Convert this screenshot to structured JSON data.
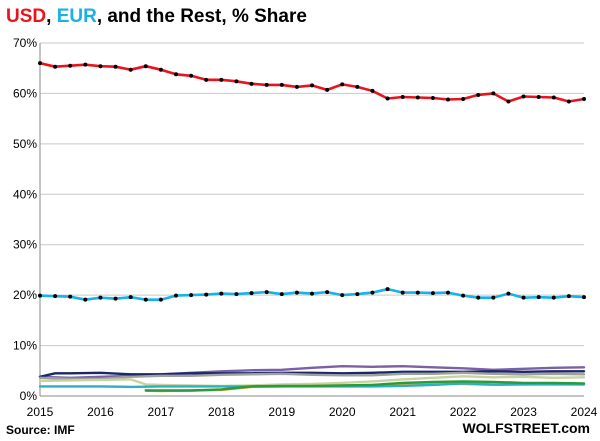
{
  "title": {
    "usd": "USD",
    "sep1": ", ",
    "eur": "EUR",
    "rest": ", and the Rest, % Share",
    "usd_color": "#e8141c",
    "eur_color": "#1ab0e8",
    "rest_color": "#000000"
  },
  "source": "Source: IMF",
  "brand": "WOLFSTREET.com",
  "chart_data": {
    "type": "line",
    "title": "USD, EUR, and the Rest, % Share",
    "xlim": [
      2015,
      2024
    ],
    "ylim": [
      0,
      70
    ],
    "x_ticks": [
      "2015",
      "2016",
      "2017",
      "2018",
      "2019",
      "2020",
      "2021",
      "2022",
      "2023",
      "2024"
    ],
    "y_ticks": [
      "0%",
      "10%",
      "20%",
      "30%",
      "40%",
      "50%",
      "60%",
      "70%"
    ],
    "grid": true,
    "legend": "none",
    "series": [
      {
        "color": "#e8141c",
        "markers": true,
        "x": [
          2015.0,
          2015.25,
          2015.5,
          2015.75,
          2016.0,
          2016.25,
          2016.5,
          2016.75,
          2017.0,
          2017.25,
          2017.5,
          2017.75,
          2018.0,
          2018.25,
          2018.5,
          2018.75,
          2019.0,
          2019.25,
          2019.5,
          2019.75,
          2020.0,
          2020.25,
          2020.5,
          2020.75,
          2021.0,
          2021.25,
          2021.5,
          2021.75,
          2022.0,
          2022.25,
          2022.5,
          2022.75,
          2023.0,
          2023.25,
          2023.5,
          2023.75,
          2024.0
        ],
        "y": [
          66.0,
          65.3,
          65.5,
          65.7,
          65.4,
          65.3,
          64.7,
          65.4,
          64.7,
          63.8,
          63.5,
          62.7,
          62.7,
          62.4,
          61.9,
          61.7,
          61.7,
          61.3,
          61.6,
          60.7,
          61.8,
          61.3,
          60.5,
          59.0,
          59.3,
          59.2,
          59.1,
          58.8,
          58.9,
          59.7,
          60.0,
          58.4,
          59.4,
          59.3,
          59.2,
          58.4,
          58.9
        ]
      },
      {
        "color": "#1ab0e8",
        "markers": true,
        "x": [
          2015.0,
          2015.25,
          2015.5,
          2015.75,
          2016.0,
          2016.25,
          2016.5,
          2016.75,
          2017.0,
          2017.25,
          2017.5,
          2017.75,
          2018.0,
          2018.25,
          2018.5,
          2018.75,
          2019.0,
          2019.25,
          2019.5,
          2019.75,
          2020.0,
          2020.25,
          2020.5,
          2020.75,
          2021.0,
          2021.25,
          2021.5,
          2021.75,
          2022.0,
          2022.25,
          2022.5,
          2022.75,
          2023.0,
          2023.25,
          2023.5,
          2023.75,
          2024.0
        ],
        "y": [
          19.9,
          19.8,
          19.7,
          19.1,
          19.5,
          19.3,
          19.6,
          19.1,
          19.1,
          19.9,
          20.0,
          20.1,
          20.3,
          20.2,
          20.4,
          20.6,
          20.2,
          20.5,
          20.3,
          20.6,
          20.0,
          20.2,
          20.5,
          21.2,
          20.5,
          20.5,
          20.4,
          20.5,
          19.9,
          19.5,
          19.5,
          20.3,
          19.5,
          19.6,
          19.5,
          19.8,
          19.6
        ]
      },
      {
        "color": "#7b5fa8",
        "x": [
          2015.0,
          2015.5,
          2016.0,
          2016.5,
          2017.0,
          2017.5,
          2018.0,
          2018.5,
          2019.0,
          2019.5,
          2020.0,
          2020.5,
          2021.0,
          2021.5,
          2022.0,
          2022.5,
          2023.0,
          2023.5,
          2024.0
        ],
        "y": [
          3.8,
          3.6,
          3.8,
          4.0,
          4.3,
          4.6,
          4.9,
          5.1,
          5.2,
          5.6,
          5.9,
          5.8,
          5.9,
          5.7,
          5.5,
          5.2,
          5.4,
          5.6,
          5.7
        ]
      },
      {
        "color": "#1a2866",
        "x": [
          2015.0,
          2015.25,
          2015.5,
          2016.0,
          2016.5,
          2017.0,
          2017.5,
          2018.0,
          2018.5,
          2019.0,
          2019.5,
          2020.0,
          2020.5,
          2021.0,
          2021.5,
          2022.0,
          2022.5,
          2023.0,
          2023.5,
          2024.0
        ],
        "y": [
          3.8,
          4.5,
          4.5,
          4.6,
          4.3,
          4.3,
          4.5,
          4.5,
          4.5,
          4.6,
          4.6,
          4.5,
          4.6,
          4.8,
          4.8,
          4.8,
          4.9,
          4.8,
          4.9,
          4.9
        ]
      },
      {
        "color": "#a0a0a0",
        "x": [
          2015.0,
          2015.5,
          2016.0,
          2016.5,
          2017.0,
          2017.5,
          2018.0,
          2018.5,
          2019.0,
          2019.5,
          2020.0,
          2020.5,
          2021.0,
          2021.5,
          2022.0,
          2022.5,
          2023.0,
          2023.5,
          2024.0
        ],
        "y": [
          3.6,
          3.4,
          3.4,
          3.8,
          4.0,
          4.0,
          4.2,
          4.3,
          4.4,
          4.2,
          4.1,
          4.1,
          4.4,
          4.4,
          4.6,
          4.4,
          4.3,
          4.4,
          4.3
        ]
      },
      {
        "color": "#c8d4a0",
        "x": [
          2015.0,
          2015.5,
          2016.0,
          2016.5,
          2016.75,
          2017.0,
          2017.5,
          2018.0,
          2018.5,
          2019.0,
          2019.5,
          2020.0,
          2020.5,
          2021.0,
          2021.5,
          2022.0,
          2022.5,
          2023.0,
          2023.5,
          2024.0
        ],
        "y": [
          3.0,
          3.1,
          3.2,
          3.3,
          2.3,
          2.2,
          2.1,
          2.0,
          2.1,
          2.3,
          2.4,
          2.6,
          2.9,
          3.3,
          3.6,
          3.9,
          3.7,
          3.8,
          3.6,
          3.7
        ]
      },
      {
        "color": "#f2a030",
        "x": [
          2016.75,
          2017.0,
          2017.5,
          2018.0,
          2018.5,
          2019.0,
          2019.5,
          2020.0,
          2020.5,
          2021.0,
          2021.5,
          2022.0,
          2022.5,
          2023.0,
          2023.5,
          2024.0
        ],
        "y": [
          1.1,
          1.0,
          1.1,
          1.2,
          1.8,
          1.9,
          2.0,
          2.1,
          2.2,
          2.3,
          2.6,
          2.4,
          2.2,
          2.3,
          2.4,
          2.3
        ]
      },
      {
        "color": "#2ab0c0",
        "x": [
          2015.0,
          2015.5,
          2016.0,
          2016.5,
          2017.0,
          2017.5,
          2018.0,
          2018.5,
          2019.0,
          2019.5,
          2020.0,
          2020.5,
          2021.0,
          2021.5,
          2022.0,
          2022.5,
          2023.0,
          2023.5,
          2024.0
        ],
        "y": [
          1.9,
          1.9,
          1.9,
          1.8,
          1.9,
          1.9,
          1.9,
          1.9,
          1.9,
          1.9,
          1.9,
          1.9,
          2.0,
          2.2,
          2.5,
          2.3,
          2.3,
          2.3,
          2.3
        ]
      },
      {
        "color": "#2a9a3a",
        "x": [
          2016.75,
          2017.0,
          2017.5,
          2018.0,
          2018.5,
          2019.0,
          2019.5,
          2020.0,
          2020.5,
          2021.0,
          2021.5,
          2022.0,
          2022.5,
          2023.0,
          2023.5,
          2024.0
        ],
        "y": [
          1.1,
          1.1,
          1.1,
          1.3,
          1.9,
          2.0,
          2.0,
          2.1,
          2.2,
          2.6,
          2.8,
          2.9,
          2.8,
          2.6,
          2.6,
          2.5
        ]
      }
    ]
  }
}
